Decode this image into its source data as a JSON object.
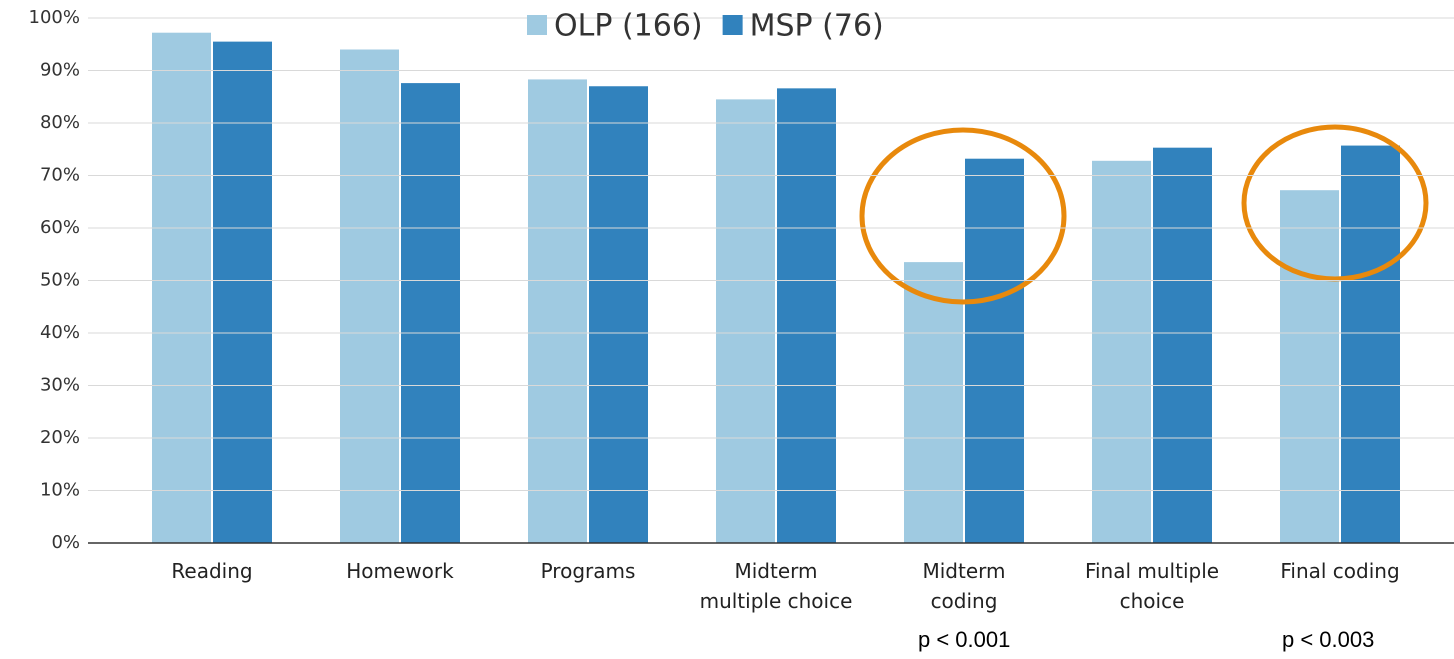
{
  "chart_data": {
    "type": "bar",
    "categories": [
      "Reading",
      "Homework",
      "Programs",
      "Midterm\nmultiple choice",
      "Midterm\ncoding",
      "Final multiple\nchoice",
      "Final coding"
    ],
    "series": [
      {
        "name": "OLP (166)",
        "color": "#9fcae1",
        "values": [
          97.2,
          94.0,
          88.3,
          84.5,
          53.5,
          72.8,
          67.2
        ]
      },
      {
        "name": "MSP (76)",
        "color": "#3182bd",
        "values": [
          95.5,
          87.6,
          87.0,
          86.6,
          73.2,
          75.3,
          75.7
        ]
      }
    ],
    "ylim": [
      0,
      100
    ],
    "yticks": [
      {
        "value": 0,
        "label": "0%"
      },
      {
        "value": 10,
        "label": "10%"
      },
      {
        "value": 20,
        "label": "20%"
      },
      {
        "value": 30,
        "label": "30%"
      },
      {
        "value": 40,
        "label": "40%"
      },
      {
        "value": 50,
        "label": "50%"
      },
      {
        "value": 60,
        "label": "60%"
      },
      {
        "value": 70,
        "label": "70%"
      },
      {
        "value": 80,
        "label": "80%"
      },
      {
        "value": 90,
        "label": "90%"
      },
      {
        "value": 100,
        "label": "100%"
      }
    ],
    "grid": true,
    "legend": "top",
    "annotations": [
      "p < 0.001",
      "p < 0.003"
    ]
  }
}
